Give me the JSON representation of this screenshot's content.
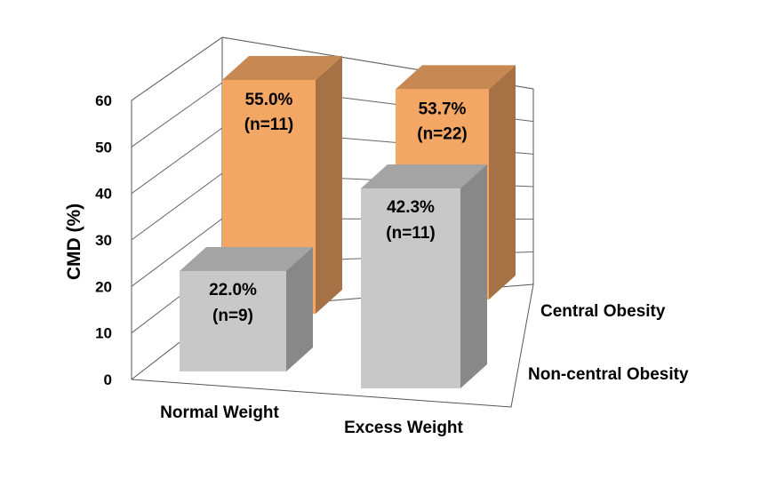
{
  "chart_data": {
    "type": "bar",
    "subtype": "3d-clustered",
    "ylabel": "CMD (%)",
    "ylim": [
      0,
      60
    ],
    "yticks": [
      "0",
      "10",
      "20",
      "30",
      "40",
      "50",
      "60"
    ],
    "categories": [
      "Normal Weight",
      "Excess Weight"
    ],
    "series": [
      {
        "name": "Central Obesity",
        "color": "#f4a664",
        "values": [
          55.0,
          53.7
        ],
        "labels": [
          [
            "55.0%",
            "(n=11)"
          ],
          [
            "53.7%",
            "(n=22)"
          ]
        ]
      },
      {
        "name": "Non-central Obesity",
        "color": "#c8c8c8",
        "values": [
          22.0,
          42.3
        ],
        "labels": [
          [
            "22.0%",
            "(n=9)"
          ],
          [
            "42.3%",
            "(n=11)"
          ]
        ]
      }
    ],
    "grid": true,
    "legend": "depth-axis-right"
  }
}
